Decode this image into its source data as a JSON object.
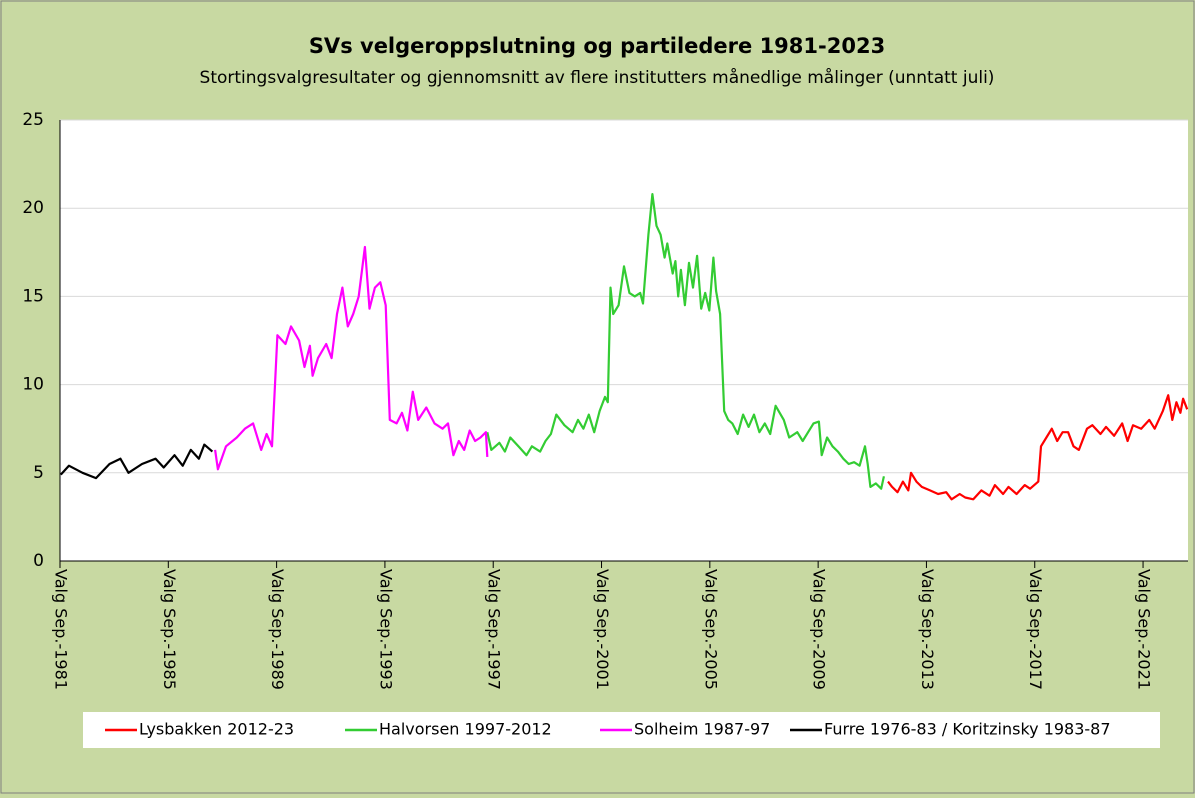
{
  "chart_data": {
    "type": "line",
    "title": "SVs velgeroppslutning og partiledere 1981-2023",
    "subtitle": "Stortingsvalgresultater og gjennomsnitt av flere institutters månedlige målinger (unntatt juli)",
    "xlim": [
      1981.67,
      2023.33
    ],
    "xticks": [
      {
        "value": 1981.67,
        "label": "Valg Sep.-1981"
      },
      {
        "value": 1985.67,
        "label": "Valg Sep.-1985"
      },
      {
        "value": 1989.67,
        "label": "Valg Sep.-1989"
      },
      {
        "value": 1993.67,
        "label": "Valg Sep.-1993"
      },
      {
        "value": 1997.67,
        "label": "Valg Sep.-1997"
      },
      {
        "value": 2001.67,
        "label": "Valg Sep.-2001"
      },
      {
        "value": 2005.67,
        "label": "Valg Sep.-2005"
      },
      {
        "value": 2009.67,
        "label": "Valg Sep.-2009"
      },
      {
        "value": 2013.67,
        "label": "Valg Sep.-2013"
      },
      {
        "value": 2017.67,
        "label": "Valg Sep.-2017"
      },
      {
        "value": 2021.67,
        "label": "Valg Sep.-2021"
      }
    ],
    "ylim": [
      0,
      25
    ],
    "yticks": [
      0,
      5,
      10,
      15,
      20,
      25
    ],
    "grid": true,
    "series": [
      {
        "name": "Lysbakken 2012-23",
        "color": "#ff0000",
        "x": [
          2012.25,
          2012.4,
          2012.6,
          2012.8,
          2013.0,
          2013.1,
          2013.3,
          2013.5,
          2013.8,
          2014.1,
          2014.4,
          2014.6,
          2014.9,
          2015.1,
          2015.4,
          2015.7,
          2016.0,
          2016.2,
          2016.5,
          2016.7,
          2017.0,
          2017.3,
          2017.5,
          2017.8,
          2017.9,
          2018.1,
          2018.3,
          2018.5,
          2018.7,
          2018.9,
          2019.1,
          2019.3,
          2019.6,
          2019.8,
          2020.1,
          2020.3,
          2020.6,
          2020.9,
          2021.1,
          2021.3,
          2021.6,
          2021.9,
          2022.1,
          2022.4,
          2022.6,
          2022.75,
          2022.9,
          2023.05,
          2023.15,
          2023.3
        ],
        "values": [
          4.5,
          4.2,
          3.9,
          4.5,
          4.0,
          5.0,
          4.5,
          4.2,
          4.0,
          3.8,
          3.9,
          3.5,
          3.8,
          3.6,
          3.5,
          4.0,
          3.7,
          4.3,
          3.8,
          4.2,
          3.8,
          4.3,
          4.1,
          4.5,
          6.5,
          7.0,
          7.5,
          6.8,
          7.3,
          7.3,
          6.5,
          6.3,
          7.5,
          7.7,
          7.2,
          7.6,
          7.1,
          7.8,
          6.8,
          7.7,
          7.5,
          8.0,
          7.5,
          8.5,
          9.4,
          8.0,
          9.0,
          8.4,
          9.2,
          8.6
        ]
      },
      {
        "name": "Halvorsen 1997-2012",
        "color": "#33cc33",
        "x": [
          1997.45,
          1997.6,
          1997.9,
          1998.1,
          1998.3,
          1998.6,
          1998.9,
          1999.1,
          1999.4,
          1999.6,
          1999.8,
          2000.0,
          2000.3,
          2000.6,
          2000.8,
          2001.0,
          2001.2,
          2001.4,
          2001.6,
          2001.8,
          2001.9,
          2002.0,
          2002.1,
          2002.3,
          2002.5,
          2002.7,
          2002.9,
          2003.1,
          2003.2,
          2003.4,
          2003.55,
          2003.7,
          2003.85,
          2004.0,
          2004.1,
          2004.3,
          2004.4,
          2004.5,
          2004.6,
          2004.75,
          2004.9,
          2005.05,
          2005.2,
          2005.35,
          2005.5,
          2005.65,
          2005.8,
          2005.9,
          2006.05,
          2006.2,
          2006.35,
          2006.5,
          2006.7,
          2006.9,
          2007.1,
          2007.3,
          2007.5,
          2007.7,
          2007.9,
          2008.1,
          2008.4,
          2008.6,
          2008.9,
          2009.1,
          2009.3,
          2009.5,
          2009.7,
          2009.8,
          2010.0,
          2010.2,
          2010.4,
          2010.6,
          2010.8,
          2011.0,
          2011.2,
          2011.4,
          2011.5,
          2011.6,
          2011.8,
          2012.0,
          2012.1
        ],
        "values": [
          7.3,
          6.3,
          6.7,
          6.2,
          7.0,
          6.5,
          6.0,
          6.5,
          6.2,
          6.8,
          7.2,
          8.3,
          7.7,
          7.3,
          8.0,
          7.5,
          8.3,
          7.3,
          8.5,
          9.3,
          9.0,
          15.5,
          14.0,
          14.5,
          16.7,
          15.2,
          15.0,
          15.2,
          14.6,
          18.5,
          20.8,
          19.0,
          18.5,
          17.2,
          18.0,
          16.3,
          17.0,
          15.0,
          16.5,
          14.5,
          16.9,
          15.5,
          17.3,
          14.3,
          15.2,
          14.2,
          17.2,
          15.3,
          14.0,
          8.5,
          8.0,
          7.8,
          7.2,
          8.3,
          7.6,
          8.3,
          7.3,
          7.8,
          7.2,
          8.8,
          8.0,
          7.0,
          7.3,
          6.8,
          7.3,
          7.8,
          7.9,
          6.0,
          7.0,
          6.5,
          6.2,
          5.8,
          5.5,
          5.6,
          5.4,
          6.5,
          5.5,
          4.2,
          4.4,
          4.1,
          4.8
        ]
      },
      {
        "name": "Solheim 1987-97",
        "color": "#ff00ff",
        "x": [
          1987.4,
          1987.5,
          1987.8,
          1988.2,
          1988.5,
          1988.8,
          1989.1,
          1989.3,
          1989.5,
          1989.7,
          1990.0,
          1990.2,
          1990.5,
          1990.7,
          1990.9,
          1991.0,
          1991.2,
          1991.5,
          1991.7,
          1991.9,
          1992.1,
          1992.3,
          1992.5,
          1992.7,
          1992.93,
          1993.1,
          1993.3,
          1993.5,
          1993.7,
          1993.85,
          1994.1,
          1994.3,
          1994.5,
          1994.7,
          1994.9,
          1995.2,
          1995.5,
          1995.8,
          1996.0,
          1996.2,
          1996.4,
          1996.6,
          1996.8,
          1997.0,
          1997.2,
          1997.4,
          1997.45
        ],
        "values": [
          6.3,
          5.2,
          6.5,
          7.0,
          7.5,
          7.8,
          6.3,
          7.2,
          6.5,
          12.8,
          12.3,
          13.3,
          12.5,
          11.0,
          12.2,
          10.5,
          11.5,
          12.3,
          11.5,
          14.0,
          15.5,
          13.3,
          14.0,
          15.0,
          17.8,
          14.3,
          15.5,
          15.8,
          14.5,
          8.0,
          7.8,
          8.4,
          7.4,
          9.6,
          8.0,
          8.7,
          7.8,
          7.5,
          7.8,
          6.0,
          6.8,
          6.3,
          7.4,
          6.8,
          7.0,
          7.3,
          5.9
        ]
      },
      {
        "name": "Furre 1976-83 / Koritzinsky 1983-87",
        "color": "#000000",
        "x": [
          1981.7,
          1982.0,
          1982.5,
          1983.0,
          1983.5,
          1983.9,
          1984.2,
          1984.7,
          1985.2,
          1985.5,
          1985.9,
          1986.2,
          1986.5,
          1986.8,
          1987.0,
          1987.3
        ],
        "values": [
          4.9,
          5.4,
          5.0,
          4.7,
          5.5,
          5.8,
          5.0,
          5.5,
          5.8,
          5.3,
          6.0,
          5.4,
          6.3,
          5.8,
          6.6,
          6.2
        ]
      }
    ]
  }
}
